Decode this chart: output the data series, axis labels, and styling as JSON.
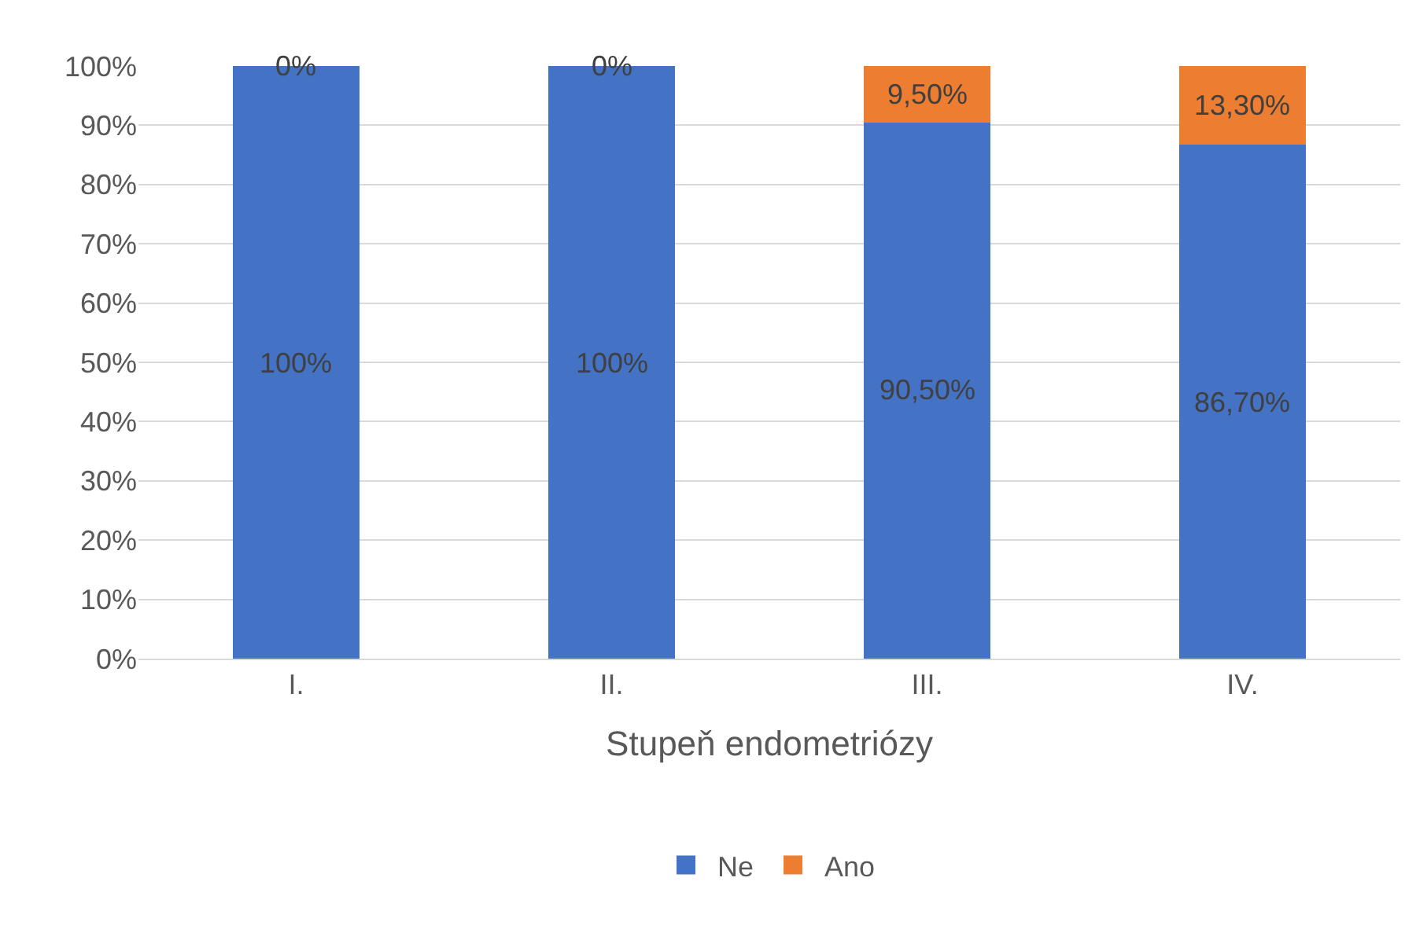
{
  "chart_data": {
    "type": "bar",
    "stacked": true,
    "xlabel": "Stupeň endometriózy",
    "categories": [
      "I.",
      "II.",
      "III.",
      "IV."
    ],
    "series": [
      {
        "name": "Ne",
        "color": "#4472c4",
        "values": [
          100,
          100,
          90.5,
          86.7
        ],
        "value_labels": [
          "100%",
          "100%",
          "90,50%",
          "86,70%"
        ]
      },
      {
        "name": "Ano",
        "color": "#ed7d31",
        "values": [
          0,
          0,
          9.5,
          13.3
        ],
        "value_labels": [
          "0%",
          "0%",
          "9,50%",
          "13,30%"
        ]
      }
    ],
    "ylim": [
      0,
      100
    ],
    "yticks": [
      {
        "value": 0,
        "label": "0%"
      },
      {
        "value": 10,
        "label": "10%"
      },
      {
        "value": 20,
        "label": "20%"
      },
      {
        "value": 30,
        "label": "30%"
      },
      {
        "value": 40,
        "label": "40%"
      },
      {
        "value": 50,
        "label": "50%"
      },
      {
        "value": 60,
        "label": "60%"
      },
      {
        "value": 70,
        "label": "70%"
      },
      {
        "value": 80,
        "label": "80%"
      },
      {
        "value": 90,
        "label": "90%"
      },
      {
        "value": 100,
        "label": "100%"
      }
    ],
    "grid": "y",
    "legend": "bottom"
  }
}
